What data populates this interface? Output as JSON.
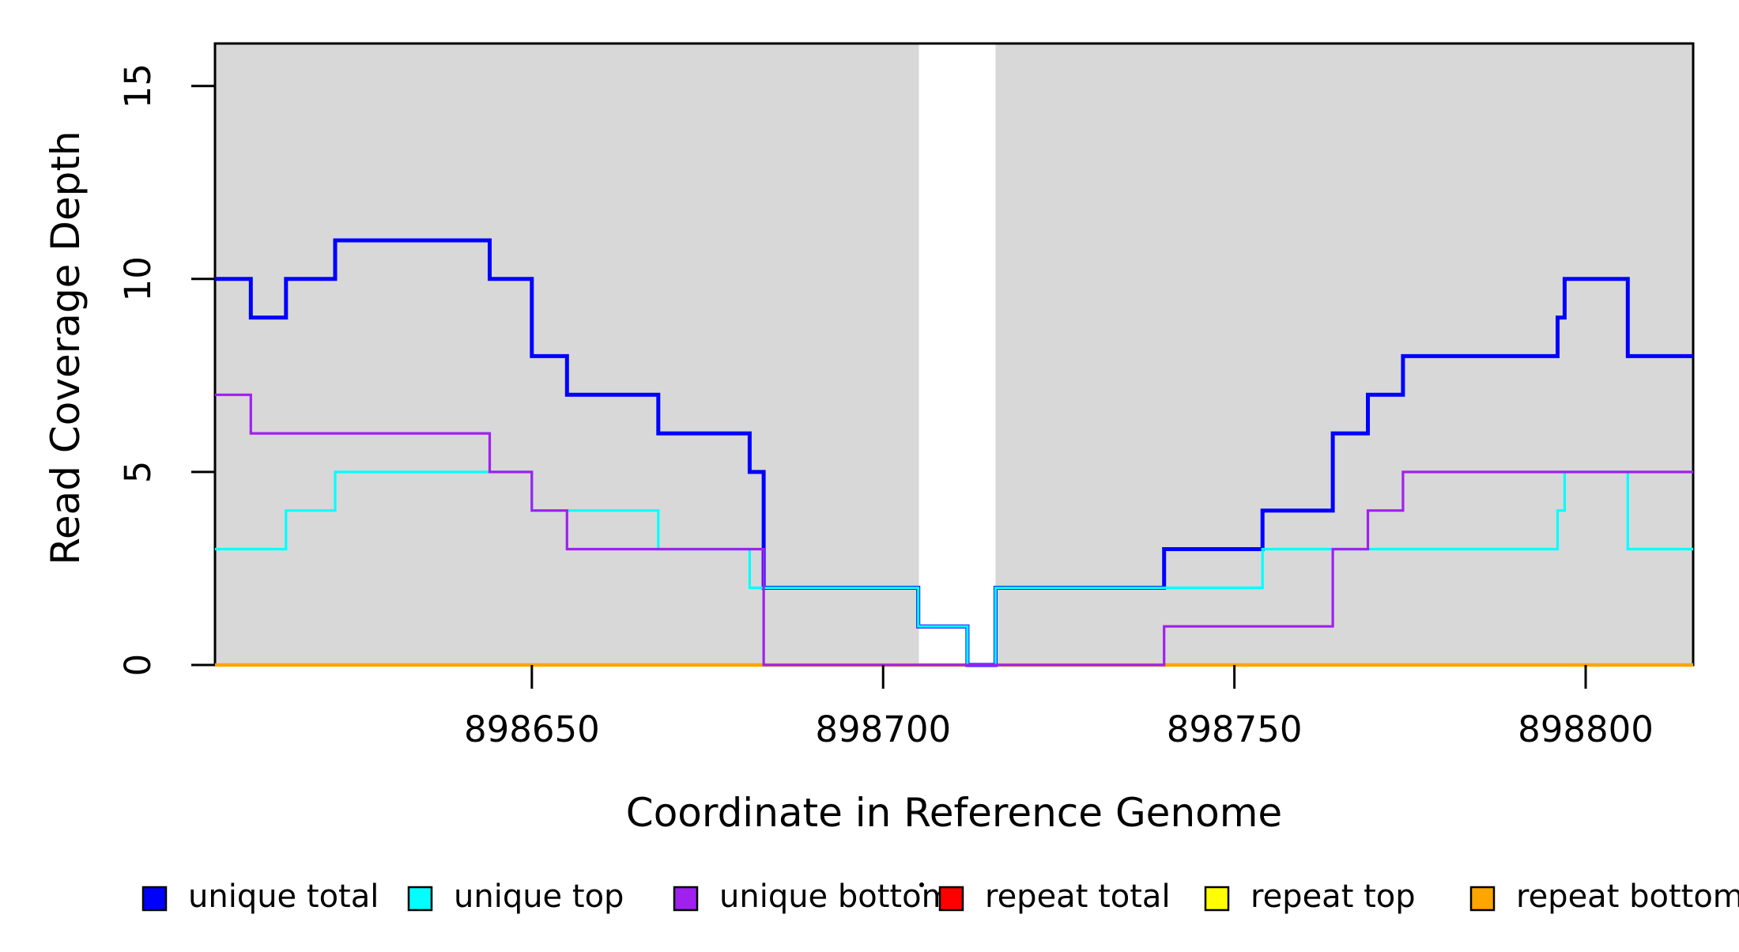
{
  "figure": {
    "xlabel": "Coordinate in Reference Genome",
    "ylabel": "Read Coverage Depth"
  },
  "chart_data": {
    "type": "line",
    "step": true,
    "title": "",
    "xlabel": "Coordinate in Reference Genome",
    "ylabel": "Read Coverage Depth",
    "xlim": [
      898604.9,
      898815.3
    ],
    "ylim": [
      0,
      16.1
    ],
    "x_ticks": [
      898650,
      898700,
      898750,
      898800
    ],
    "x_tick_labels": [
      "898650",
      "898700",
      "898750",
      "898800"
    ],
    "y_ticks": [
      0,
      5,
      10,
      15
    ],
    "y_tick_labels": [
      "0",
      "5",
      "10",
      "15"
    ],
    "grid": false,
    "plot_background_color": "#d8d8d8",
    "gap_region_no_shading": [
      898705.1,
      898716.0
    ],
    "legend_position": "bottom",
    "draw_order": [
      "repeat total",
      "repeat top",
      "repeat bottom",
      "unique total",
      "unique top",
      "unique bottom"
    ],
    "series": [
      {
        "name": "unique total",
        "color": "#0000ff",
        "line_width": 5,
        "breakpoints": [
          [
            898604.9,
            10
          ],
          [
            898610,
            9
          ],
          [
            898615,
            10
          ],
          [
            898622,
            11
          ],
          [
            898644,
            10
          ],
          [
            898650,
            8
          ],
          [
            898655,
            7
          ],
          [
            898668,
            6
          ],
          [
            898681,
            5
          ],
          [
            898683,
            2
          ],
          [
            898705,
            1
          ],
          [
            898712,
            0
          ],
          [
            898716,
            2
          ],
          [
            898740,
            3
          ],
          [
            898754,
            4
          ],
          [
            898764,
            6
          ],
          [
            898769,
            7
          ],
          [
            898774,
            8
          ],
          [
            898796,
            9
          ],
          [
            898797,
            10
          ],
          [
            898806,
            8
          ]
        ]
      },
      {
        "name": "unique top",
        "color": "#00ffff",
        "line_width": 3.2,
        "breakpoints": [
          [
            898604.9,
            3
          ],
          [
            898615,
            4
          ],
          [
            898622,
            5
          ],
          [
            898650,
            4
          ],
          [
            898668,
            3
          ],
          [
            898681,
            2
          ],
          [
            898705,
            1
          ],
          [
            898712,
            0
          ],
          [
            898716,
            2
          ],
          [
            898754,
            3
          ],
          [
            898796,
            4
          ],
          [
            898797,
            5
          ],
          [
            898806,
            3
          ]
        ]
      },
      {
        "name": "unique bottom",
        "color": "#a020f0",
        "line_width": 3.2,
        "breakpoints": [
          [
            898604.9,
            7
          ],
          [
            898610,
            6
          ],
          [
            898644,
            5
          ],
          [
            898650,
            4
          ],
          [
            898655,
            3
          ],
          [
            898683,
            0
          ],
          [
            898740,
            1
          ],
          [
            898764,
            3
          ],
          [
            898769,
            4
          ],
          [
            898774,
            5
          ]
        ]
      },
      {
        "name": "repeat total",
        "color": "#ff0000",
        "line_width": 3.2,
        "breakpoints": [
          [
            898604.9,
            0
          ]
        ]
      },
      {
        "name": "repeat top",
        "color": "#ffff00",
        "line_width": 3.2,
        "breakpoints": [
          [
            898604.9,
            0
          ]
        ]
      },
      {
        "name": "repeat bottom",
        "color": "#ffa500",
        "line_width": 4.5,
        "breakpoints": [
          [
            898604.9,
            0
          ]
        ]
      }
    ],
    "legend": [
      {
        "label": "unique total",
        "color": "#0000ff"
      },
      {
        "label": "unique top",
        "color": "#00ffff"
      },
      {
        "label": "unique bottom",
        "color": "#a020f0"
      },
      {
        "label": "repeat total",
        "color": "#ff0000"
      },
      {
        "label": "repeat top",
        "color": "#ffff00"
      },
      {
        "label": "repeat bottom",
        "color": "#ffa500"
      }
    ],
    "annotations": [
      {
        "type": "stray-dot",
        "color": "#000000"
      }
    ]
  }
}
